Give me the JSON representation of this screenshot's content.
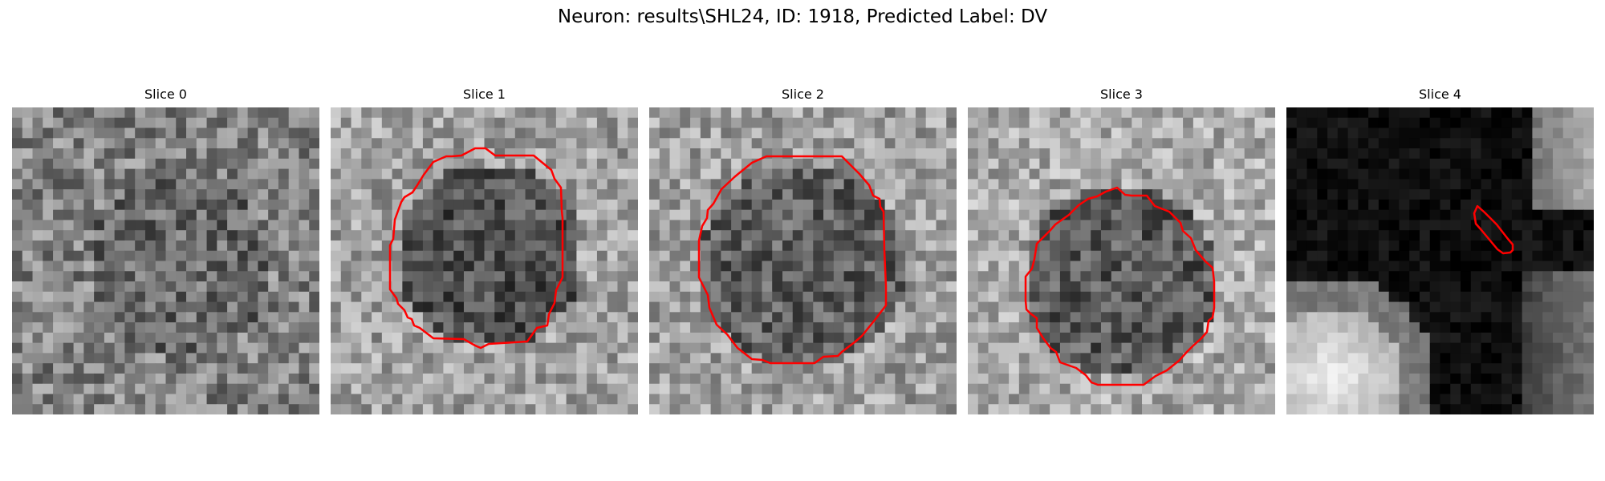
{
  "figure": {
    "title": "Neuron: results\\SHL24, ID: 1918, Predicted Label: DV"
  },
  "panels": [
    {
      "title": "Slice 0",
      "image": "noisy-grayscale-field",
      "has_contour": false
    },
    {
      "title": "Slice 1",
      "image": "dark-round-cell-body",
      "has_contour": true
    },
    {
      "title": "Slice 2",
      "image": "dark-round-cell-body",
      "has_contour": true
    },
    {
      "title": "Slice 3",
      "image": "dark-round-cell-body",
      "has_contour": true
    },
    {
      "title": "Slice 4",
      "image": "dark-region-with-bright-blob",
      "has_contour": true
    }
  ],
  "colors": {
    "contour": "#ff0000",
    "background": "#ffffff"
  }
}
